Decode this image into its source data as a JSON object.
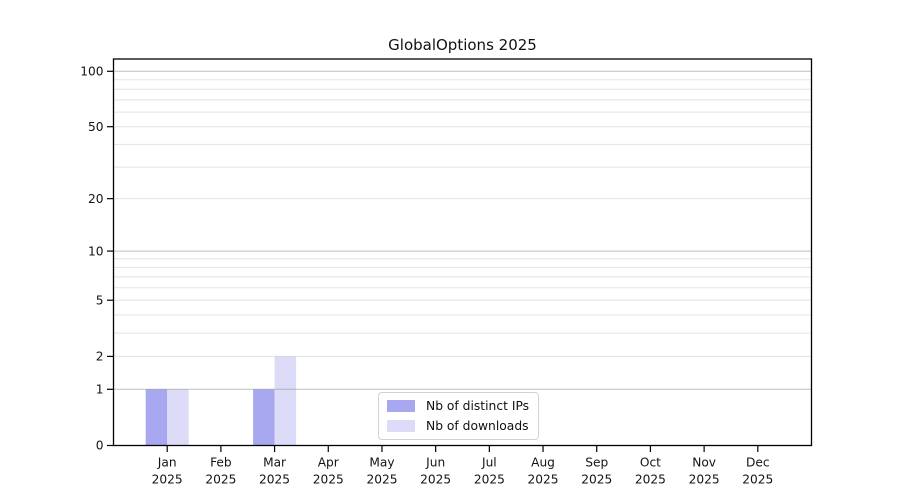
{
  "title": "GlobalOptions 2025",
  "chart_data": {
    "type": "bar",
    "title": "GlobalOptions 2025",
    "categories": [
      {
        "month": "Jan",
        "year": "2025"
      },
      {
        "month": "Feb",
        "year": "2025"
      },
      {
        "month": "Mar",
        "year": "2025"
      },
      {
        "month": "Apr",
        "year": "2025"
      },
      {
        "month": "May",
        "year": "2025"
      },
      {
        "month": "Jun",
        "year": "2025"
      },
      {
        "month": "Jul",
        "year": "2025"
      },
      {
        "month": "Aug",
        "year": "2025"
      },
      {
        "month": "Sep",
        "year": "2025"
      },
      {
        "month": "Oct",
        "year": "2025"
      },
      {
        "month": "Nov",
        "year": "2025"
      },
      {
        "month": "Dec",
        "year": "2025"
      }
    ],
    "series": [
      {
        "name": "Nb of distinct IPs",
        "color": "#a8a8f0",
        "values": [
          1,
          0,
          1,
          0,
          0,
          0,
          0,
          0,
          0,
          0,
          0,
          0
        ]
      },
      {
        "name": "Nb of downloads",
        "color": "#dcdcf8",
        "values": [
          1,
          0,
          2,
          0,
          0,
          0,
          0,
          0,
          0,
          0,
          0,
          0
        ]
      }
    ],
    "y_axis": {
      "scale": "log1p",
      "tick_labels": [
        0,
        1,
        2,
        5,
        10,
        20,
        50,
        100
      ],
      "major_gridlines": [
        1,
        10,
        100
      ],
      "minor_gridlines": [
        2,
        3,
        4,
        5,
        6,
        7,
        8,
        9,
        20,
        30,
        40,
        50,
        60,
        70,
        80,
        90
      ],
      "range": [
        0,
        117
      ]
    },
    "grid": "horizontal",
    "legend_position": "lower center"
  },
  "style": {
    "axis_color": "#000000",
    "grid_rgb": "128,128,128",
    "grid_major_alpha": 0.5,
    "grid_minor_alpha": 0.22,
    "legend_border": "#d2d2d2"
  }
}
